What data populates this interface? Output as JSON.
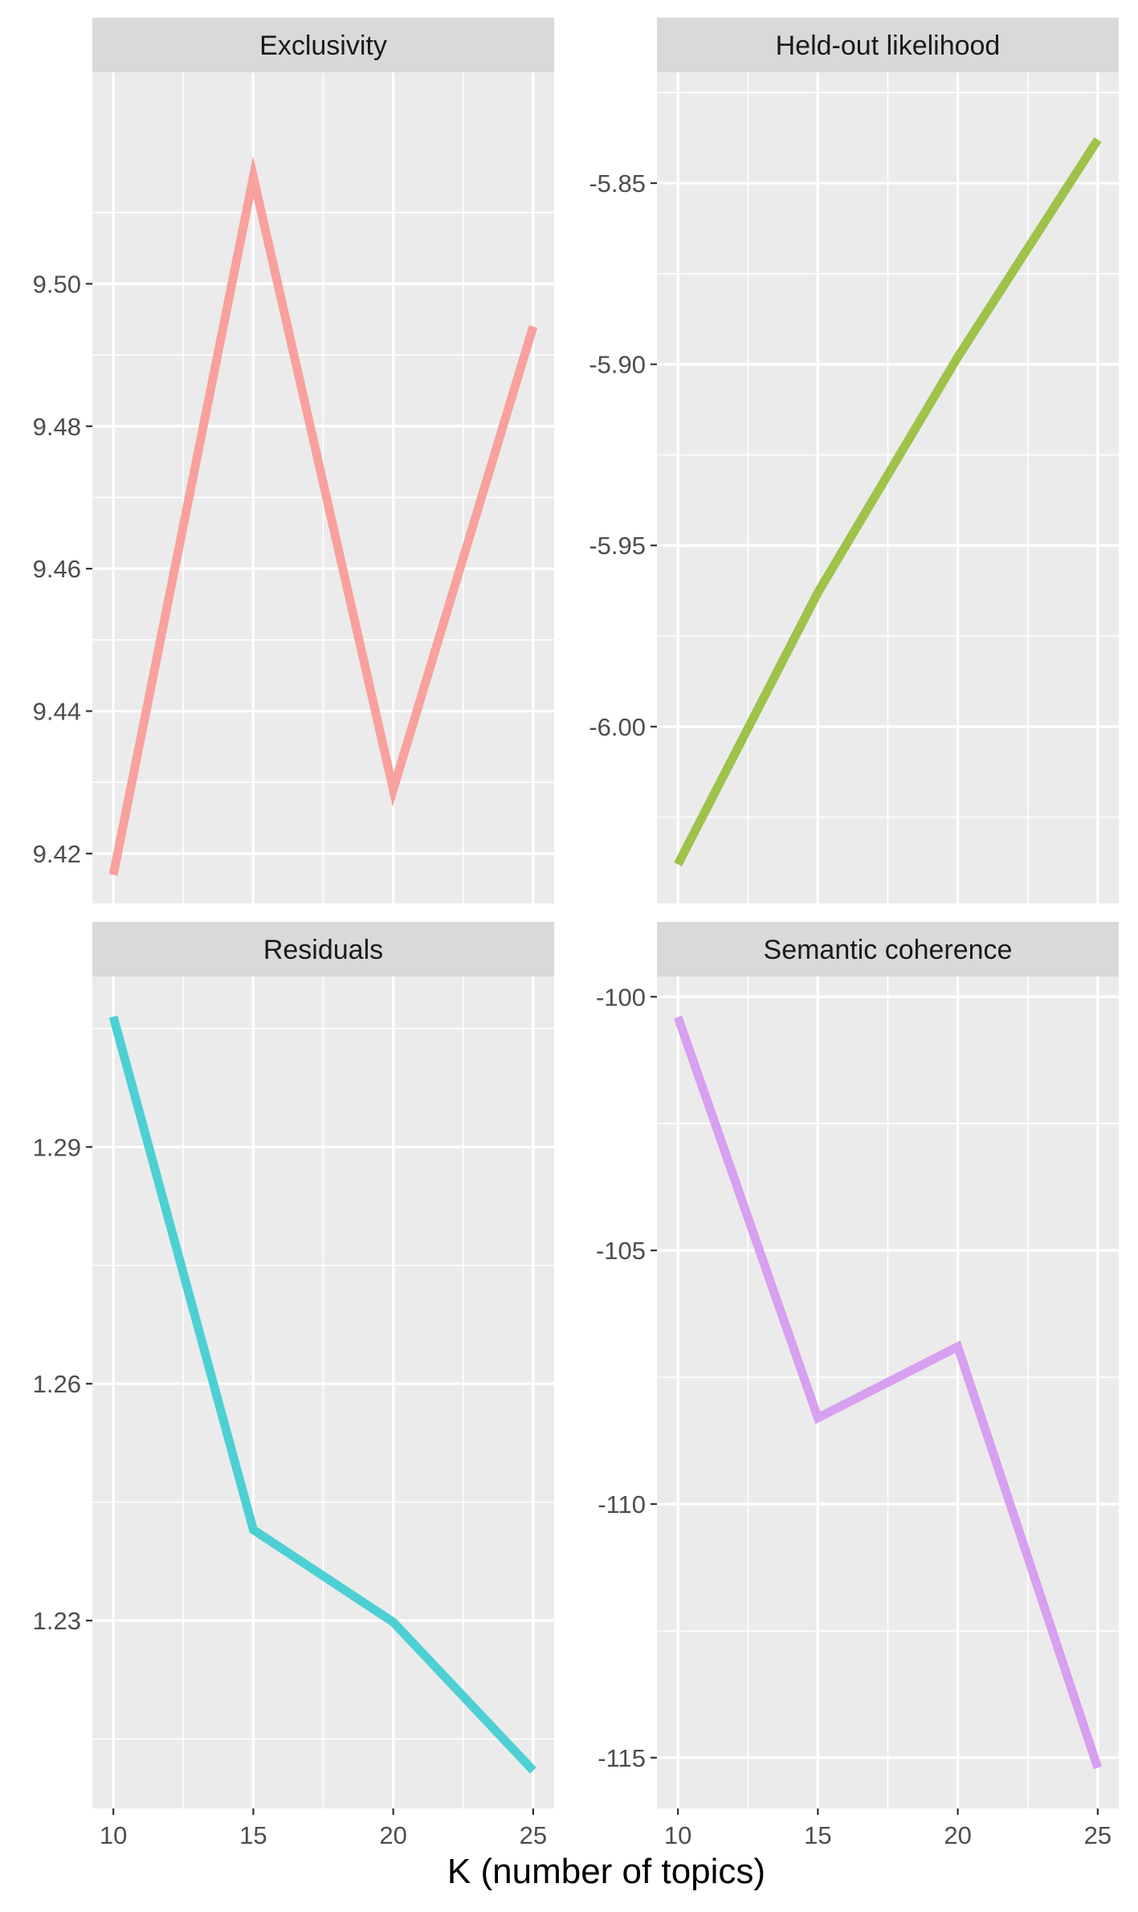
{
  "figure": {
    "xlabel": "K (number of topics)"
  },
  "chart_data": [
    {
      "type": "line",
      "title": "Exclusivity",
      "color": "#F8A19F",
      "x": [
        10,
        15,
        20,
        25
      ],
      "y": [
        9.417,
        9.515,
        9.429,
        9.494
      ],
      "xlim": [
        9.25,
        25.75
      ],
      "ylim": [
        9.413,
        9.5297
      ],
      "xticks": [
        10,
        15,
        20,
        25
      ],
      "xtick_labels": [
        "10",
        "15",
        "20",
        "25"
      ],
      "yticks": [
        9.42,
        9.44,
        9.46,
        9.48,
        9.5
      ],
      "ytick_labels": [
        "9.42",
        "9.44",
        "9.46",
        "9.48",
        "9.50"
      ],
      "grid": true
    },
    {
      "type": "line",
      "title": "Held-out likelihood",
      "color": "#9DC34A",
      "x": [
        10,
        15,
        20,
        25
      ],
      "y": [
        -6.038,
        -5.963,
        -5.898,
        -5.838
      ],
      "xlim": [
        9.25,
        25.75
      ],
      "ylim": [
        -6.0488,
        -5.8194
      ],
      "xticks": [
        10,
        15,
        20,
        25
      ],
      "xtick_labels": [
        "10",
        "15",
        "20",
        "25"
      ],
      "yticks": [
        -6.0,
        -5.95,
        -5.9,
        -5.85
      ],
      "ytick_labels": [
        "-6.00",
        "-5.95",
        "-5.90",
        "-5.85"
      ],
      "grid": true
    },
    {
      "type": "line",
      "title": "Residuals",
      "color": "#4DD0D4",
      "x": [
        10,
        15,
        20,
        25
      ],
      "y": [
        1.3065,
        1.2415,
        1.2298,
        1.211
      ],
      "xlim": [
        9.25,
        25.75
      ],
      "ylim": [
        1.2062,
        1.3116
      ],
      "xticks": [
        10,
        15,
        20,
        25
      ],
      "xtick_labels": [
        "10",
        "15",
        "20",
        "25"
      ],
      "yticks": [
        1.23,
        1.26,
        1.29
      ],
      "ytick_labels": [
        "1.23",
        "1.26",
        "1.29"
      ],
      "grid": true
    },
    {
      "type": "line",
      "title": "Semantic coherence",
      "color": "#D8A0F0",
      "x": [
        10,
        15,
        20,
        25
      ],
      "y": [
        -100.4,
        -108.3,
        -106.9,
        -115.2
      ],
      "xlim": [
        9.25,
        25.75
      ],
      "ylim": [
        -116.0,
        -99.6
      ],
      "xticks": [
        10,
        15,
        20,
        25
      ],
      "xtick_labels": [
        "10",
        "15",
        "20",
        "25"
      ],
      "yticks": [
        -115,
        -110,
        -105,
        -100
      ],
      "ytick_labels": [
        "-115",
        "-110",
        "-105",
        "-100"
      ],
      "grid": true
    }
  ]
}
